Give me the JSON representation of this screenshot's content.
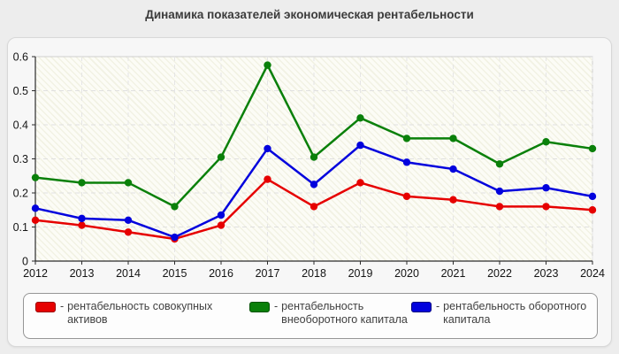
{
  "title": "Динамика показателей экономическая рентабельности",
  "chart_data": {
    "type": "line",
    "x": [
      "2012",
      "2013",
      "2014",
      "2015",
      "2016",
      "2017",
      "2018",
      "2019",
      "2020",
      "2021",
      "2022",
      "2023",
      "2024"
    ],
    "series": [
      {
        "name": "рентабельность совокупных активов",
        "color": "#e60000",
        "border": "#9b0000",
        "values": [
          0.12,
          0.105,
          0.085,
          0.065,
          0.105,
          0.24,
          0.16,
          0.23,
          0.19,
          0.18,
          0.16,
          0.16,
          0.15
        ]
      },
      {
        "name": "рентабельность внеоборотного капитала",
        "color": "#0a800a",
        "border": "#045204",
        "values": [
          0.245,
          0.23,
          0.23,
          0.16,
          0.305,
          0.575,
          0.305,
          0.42,
          0.36,
          0.36,
          0.285,
          0.35,
          0.33
        ]
      },
      {
        "name": "рентабельность оборотного капитала",
        "color": "#0202dd",
        "border": "#00007e",
        "values": [
          0.155,
          0.125,
          0.12,
          0.07,
          0.135,
          0.33,
          0.225,
          0.34,
          0.29,
          0.27,
          0.205,
          0.215,
          0.19
        ]
      }
    ],
    "ylim": [
      0,
      0.6
    ],
    "yticks": [
      0,
      0.1,
      0.2,
      0.3,
      0.4,
      0.5,
      0.6
    ],
    "xlabel": "",
    "ylabel": "",
    "grid": true,
    "legend_position": "bottom",
    "plot_background": "#fcfcf6",
    "grid_color": "#e0e0e0",
    "axis_color": "#2b2b2b"
  },
  "legend": {
    "separator": "-",
    "items": [
      {
        "label": "рентабельность совокупных активов"
      },
      {
        "label": "рентабельность внеоборотного капитала"
      },
      {
        "label": "рентабельность оборотного капитала"
      }
    ]
  }
}
